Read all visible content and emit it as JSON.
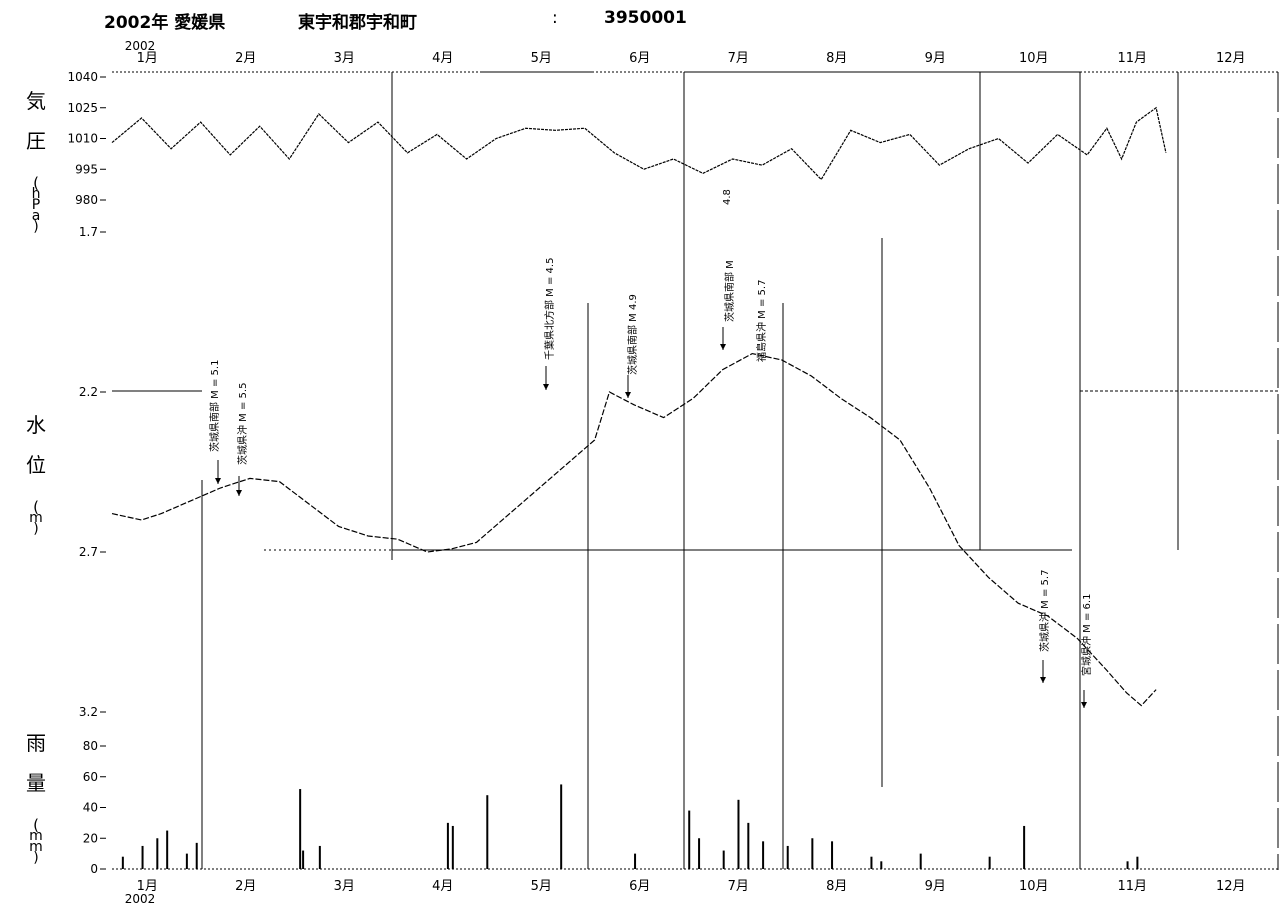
{
  "header": {
    "year_pref": "2002年  愛媛県",
    "location": "東宇和郡宇和町",
    "separator": ":",
    "station_code": "3950001"
  },
  "chart_data": [
    {
      "type": "line",
      "panel": "pressure",
      "ylabel": "気 圧 (hPa)",
      "year_label": "2002",
      "months": [
        "1月",
        "2月",
        "3月",
        "4月",
        "5月",
        "6月",
        "7月",
        "8月",
        "9月",
        "10月",
        "11月",
        "12月"
      ],
      "y_ticks": [
        "1040",
        "1025",
        "1010",
        "995",
        "980"
      ],
      "ylim": [
        980,
        1040
      ],
      "x": [
        0,
        0.3,
        0.6,
        0.9,
        1.2,
        1.5,
        1.8,
        2.1,
        2.4,
        2.7,
        3.0,
        3.3,
        3.6,
        3.9,
        4.2,
        4.5,
        4.8,
        5.1,
        5.4,
        5.7,
        6.0,
        6.3,
        6.6,
        6.9,
        7.2,
        7.5,
        7.8,
        8.1,
        8.4,
        8.7,
        9.0,
        9.3,
        9.6,
        9.9,
        10.1,
        10.25,
        10.4,
        10.6,
        10.7
      ],
      "values": [
        1008,
        1020,
        1005,
        1018,
        1002,
        1016,
        1000,
        1022,
        1008,
        1018,
        1003,
        1012,
        1000,
        1010,
        1015,
        1014,
        1015,
        1003,
        995,
        1000,
        993,
        1000,
        997,
        1005,
        990,
        1014,
        1008,
        1012,
        997,
        1005,
        1010,
        998,
        1012,
        1002,
        1015,
        1000,
        1018,
        1025,
        1003
      ],
      "x_note": "x in months from Jan 1"
    },
    {
      "type": "line",
      "panel": "water_level",
      "ylabel": "水 位 (m)",
      "y_ticks": [
        "1.7",
        "2.2",
        "2.7",
        "3.2"
      ],
      "ylim": [
        1.7,
        3.2
      ],
      "y_inverted": true,
      "x": [
        0.0,
        0.3,
        0.5,
        0.8,
        1.1,
        1.4,
        1.7,
        2.0,
        2.3,
        2.6,
        2.9,
        3.2,
        3.45,
        3.7,
        4.0,
        4.3,
        4.6,
        4.9,
        5.05,
        5.3,
        5.6,
        5.9,
        6.2,
        6.5,
        6.8,
        7.1,
        7.4,
        7.7,
        8.0,
        8.3,
        8.6,
        8.9,
        9.2,
        9.5,
        9.8,
        10.1,
        10.3,
        10.45,
        10.6
      ],
      "values": [
        2.58,
        2.6,
        2.58,
        2.54,
        2.5,
        2.47,
        2.48,
        2.55,
        2.62,
        2.65,
        2.66,
        2.7,
        2.69,
        2.67,
        2.59,
        2.51,
        2.43,
        2.35,
        2.2,
        2.24,
        2.28,
        2.22,
        2.13,
        2.08,
        2.1,
        2.15,
        2.22,
        2.28,
        2.35,
        2.5,
        2.68,
        2.78,
        2.86,
        2.9,
        2.97,
        3.07,
        3.14,
        3.18,
        3.13
      ],
      "x_note": "x in months from Jan 1"
    },
    {
      "type": "bar",
      "panel": "rainfall",
      "ylabel": "雨 量 (mm)",
      "y_ticks": [
        "80",
        "60",
        "40",
        "20",
        "0"
      ],
      "ylim": [
        0,
        90
      ],
      "x": [
        0.1,
        0.3,
        0.45,
        0.55,
        0.75,
        0.85,
        1.9,
        1.93,
        2.1,
        3.4,
        3.45,
        3.8,
        4.55,
        5.3,
        5.85,
        5.95,
        6.2,
        6.35,
        6.45,
        6.6,
        6.85,
        7.1,
        7.3,
        7.7,
        7.8,
        8.2,
        8.9,
        9.25,
        10.3,
        10.4
      ],
      "values": [
        8,
        15,
        20,
        25,
        10,
        17,
        52,
        12,
        15,
        30,
        28,
        48,
        55,
        10,
        38,
        20,
        12,
        45,
        30,
        18,
        15,
        20,
        18,
        8,
        5,
        10,
        8,
        28,
        5,
        8
      ],
      "x_note": "x in months from Jan 1"
    }
  ],
  "earthquake_labels": [
    {
      "text": "茨城県南部 M = 5.1",
      "x": 1.2
    },
    {
      "text": "茨城県沖 M = 5.5",
      "x": 1.4
    },
    {
      "text": "千葉県北方部 M = 4.5",
      "x": 5.05
    },
    {
      "text": "茨城県南部 M   4.9",
      "x": 5.9
    },
    {
      "text": "茨城県南部 M",
      "x": 6.9
    },
    {
      "text": "4.8",
      "x": 6.8
    },
    {
      "text": "福島県沖 M = 5.7",
      "x": 7.3
    },
    {
      "text": "茨城県沖 M = 5.7",
      "x": 10.1
    },
    {
      "text": "宮城県沖 M = 6.1",
      "x": 10.45
    }
  ],
  "colors": {
    "line": "#000000",
    "background": "#ffffff"
  }
}
